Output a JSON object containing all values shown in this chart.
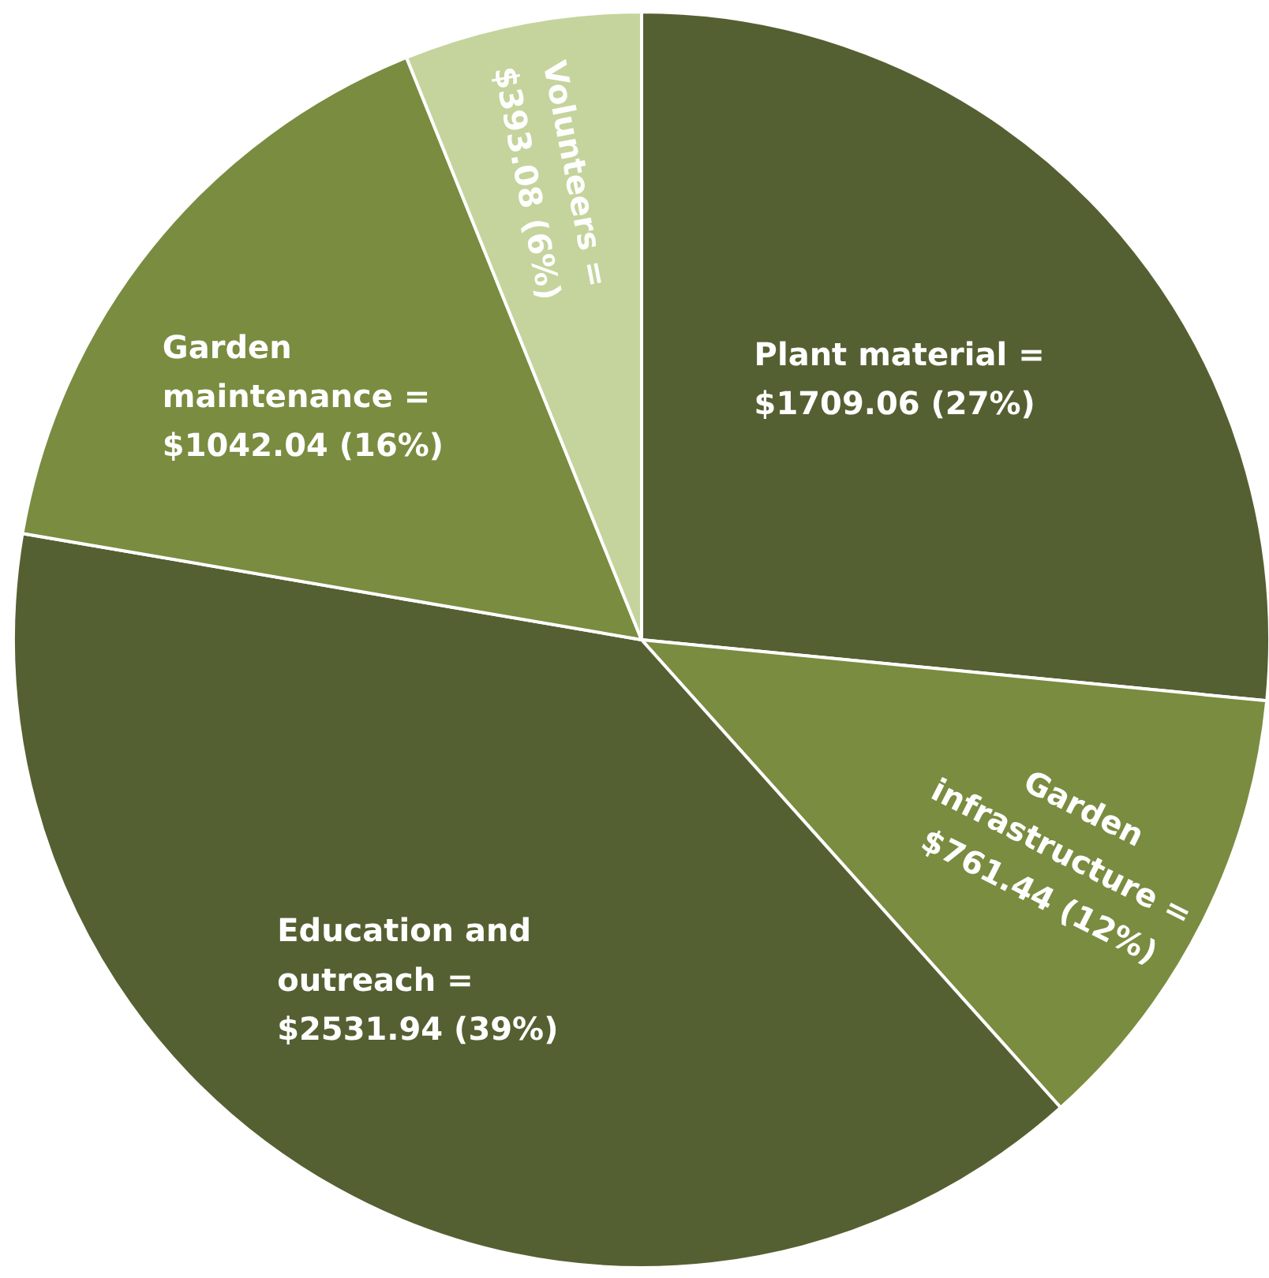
{
  "chart_data": {
    "type": "pie",
    "categories": [
      "Plant material =",
      "Garden infrastructure =",
      "Education and outreach =",
      "Garden maintenance =",
      "Volunteers ="
    ],
    "values": [
      1709.06,
      761.44,
      2531.94,
      1042.04,
      393.08
    ],
    "value_labels": [
      "$1709.06 (27%)",
      "$761.44 (12%)",
      "$2531.94 (39%)",
      "$1042.04 (16%)",
      "$393.08 (6%)"
    ],
    "colors": [
      "#556032",
      "#7a8c40",
      "#556032",
      "#7a8c40",
      "#c4d49c"
    ]
  }
}
